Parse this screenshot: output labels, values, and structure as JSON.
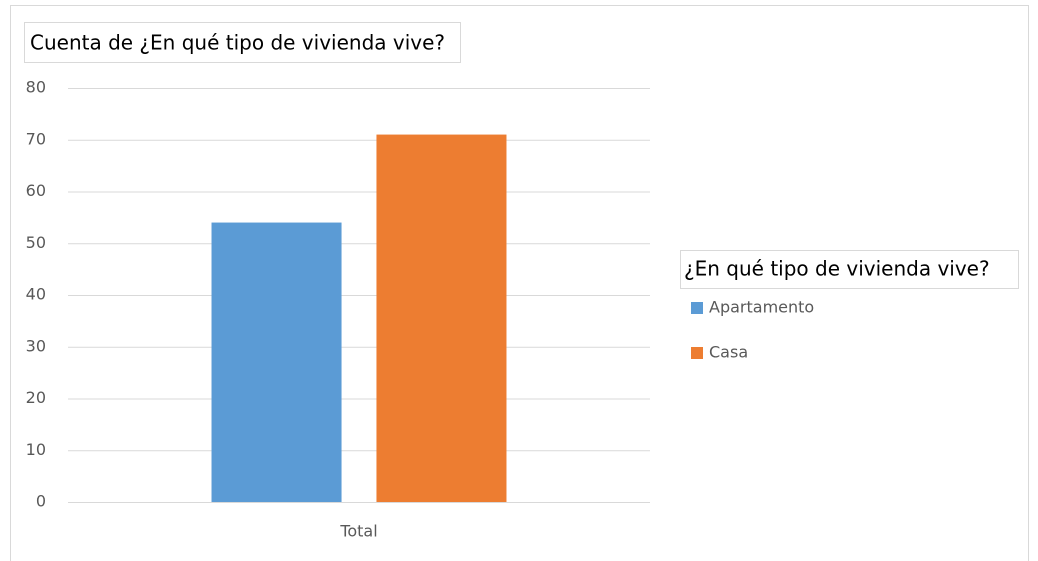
{
  "chart_data": {
    "type": "bar",
    "title": "Cuenta de ¿En qué tipo de vivienda vive?",
    "legend_title": "¿En qué tipo de vivienda vive?",
    "categories": [
      "Total"
    ],
    "series": [
      {
        "name": "Apartamento",
        "color": "#5b9bd5",
        "values": [
          54
        ]
      },
      {
        "name": "Casa",
        "color": "#ed7d31",
        "values": [
          71
        ]
      }
    ],
    "ylim": [
      0,
      80
    ],
    "yticks": [
      0,
      10,
      20,
      30,
      40,
      50,
      60,
      70,
      80
    ],
    "grid": true,
    "legend": "right"
  }
}
